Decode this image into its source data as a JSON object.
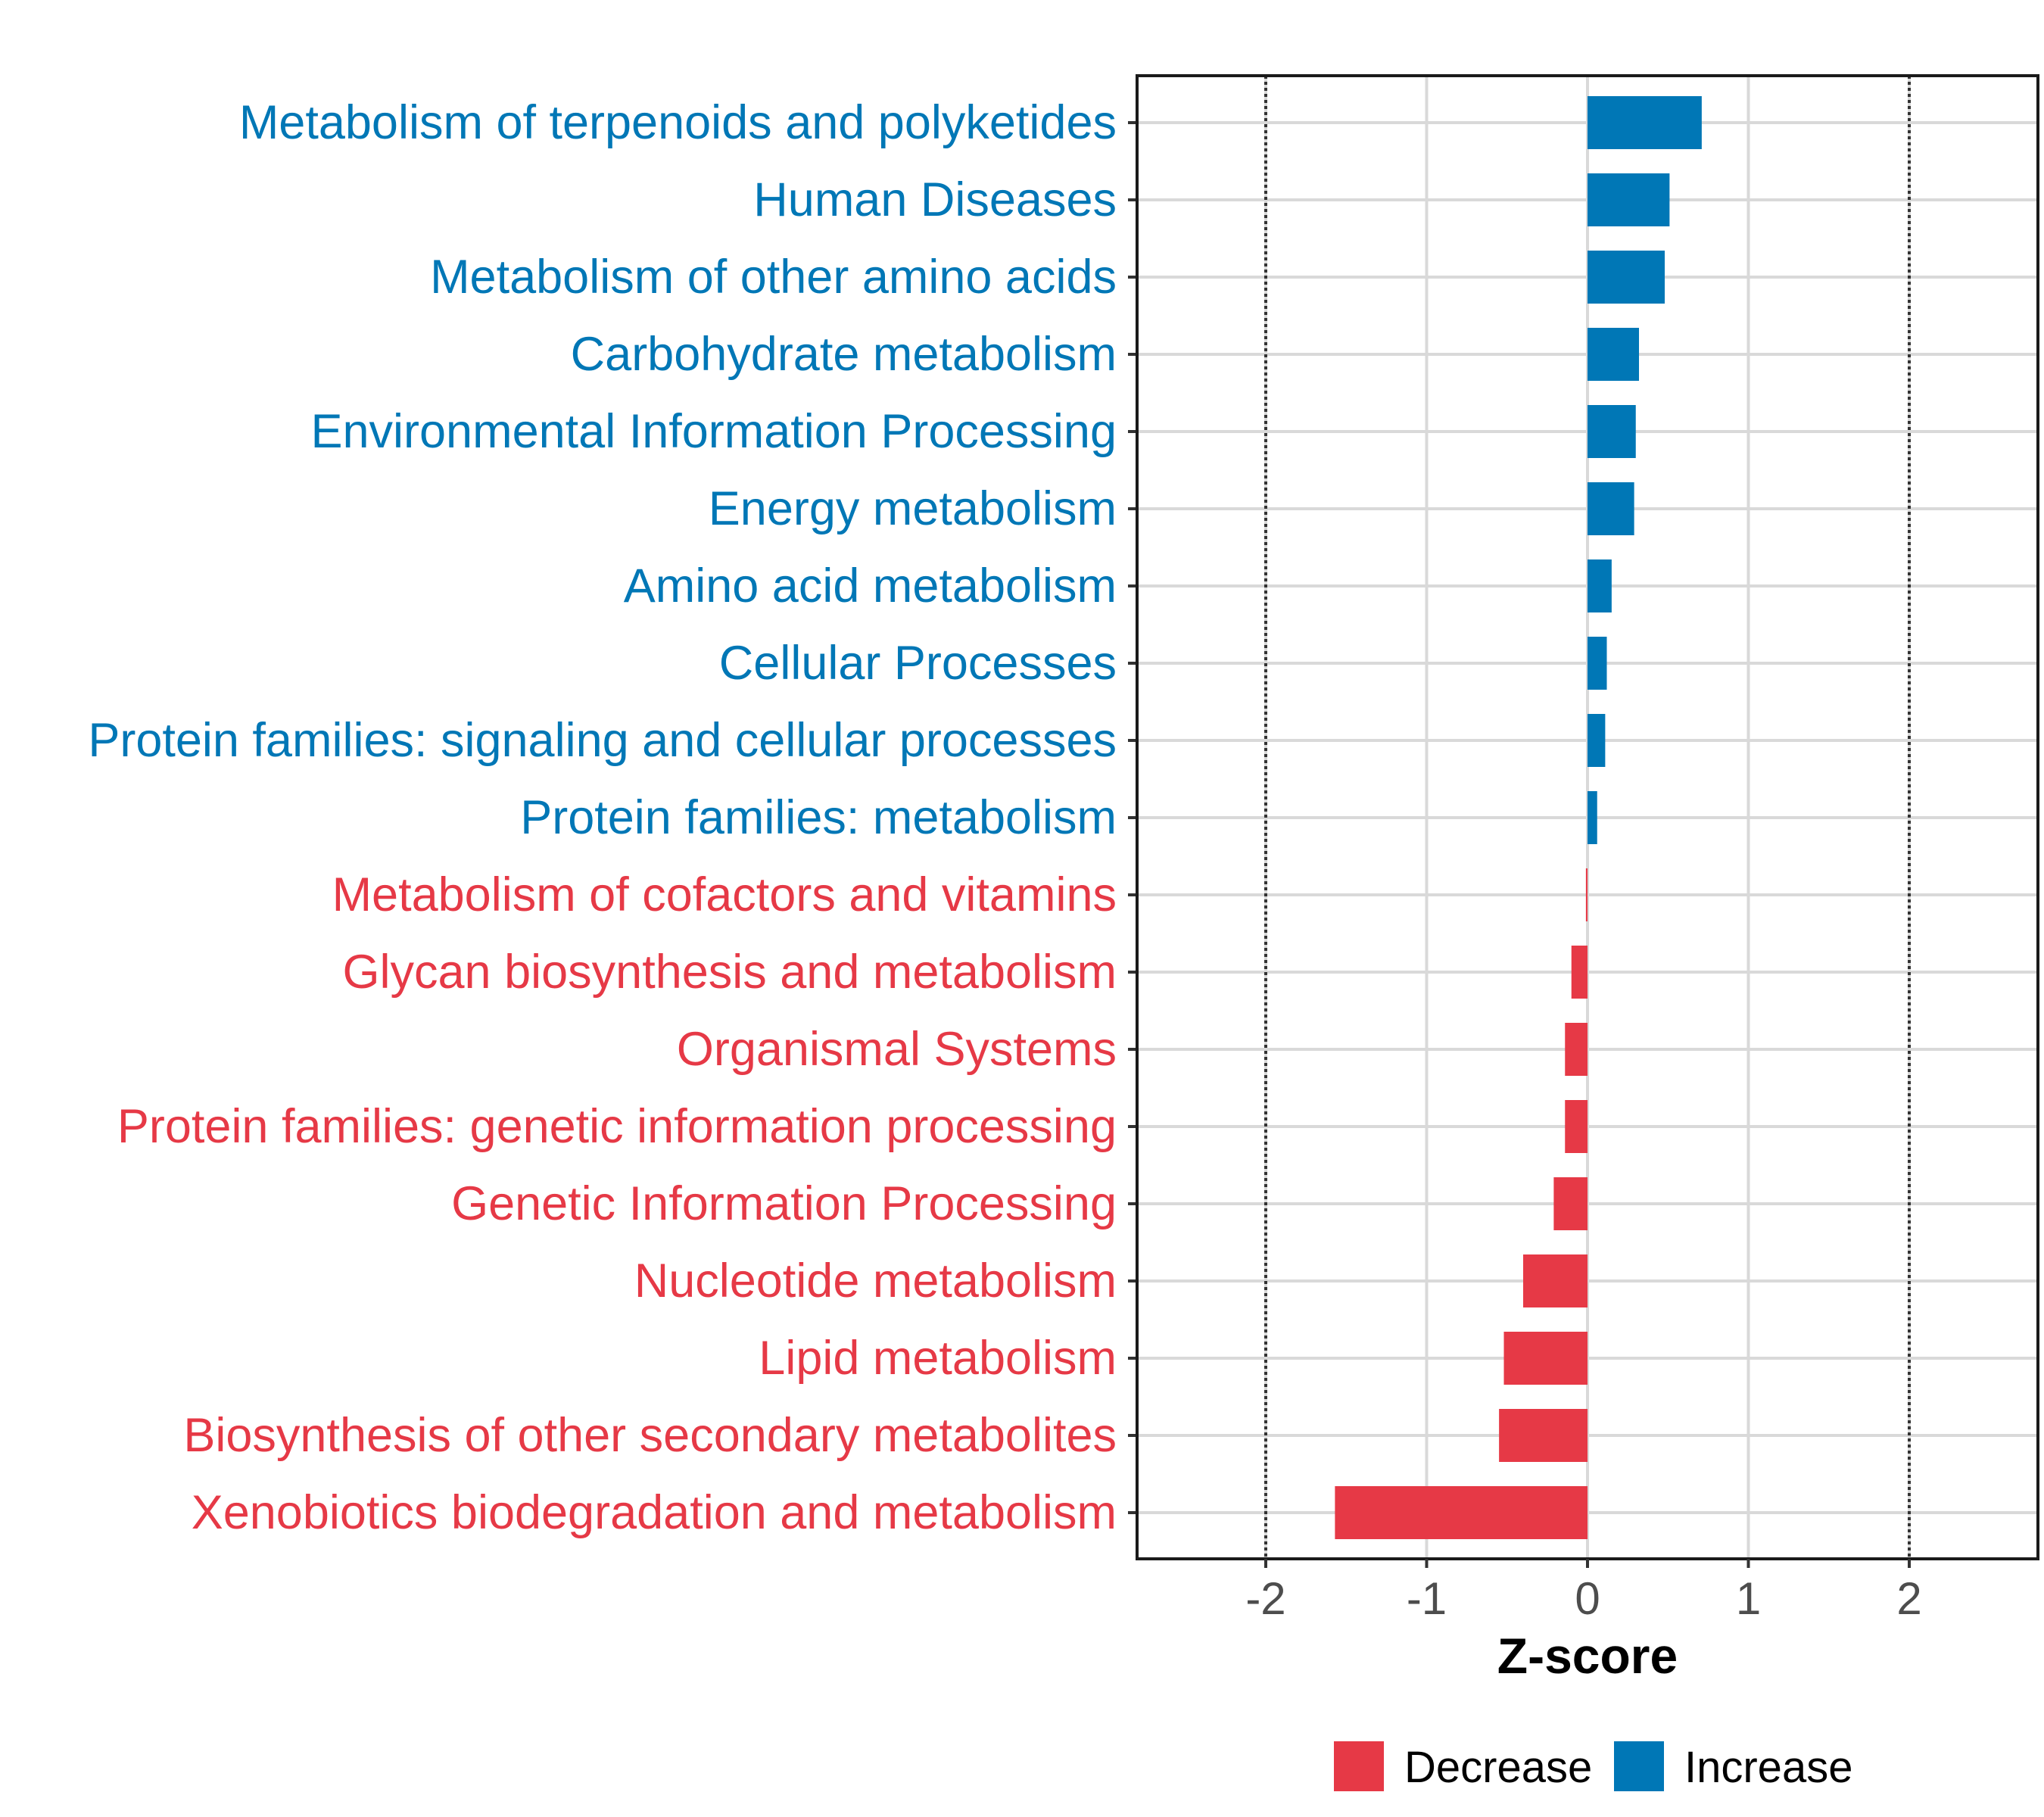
{
  "chart_data": {
    "type": "bar",
    "orientation": "horizontal",
    "xlabel": "Z-score",
    "xlim": [
      -2.8,
      2.8
    ],
    "xticks": [
      -2,
      -1,
      0,
      1,
      2
    ],
    "xtick_labels": [
      "-2",
      "-1",
      "0",
      "1",
      "2"
    ],
    "reference_lines": [
      -2,
      2
    ],
    "grid": true,
    "colors": {
      "Decrease": "#e63946",
      "Increase": "#0077b6"
    },
    "categories": [
      "Metabolism of terpenoids and polyketides",
      "Human Diseases",
      "Metabolism of other amino acids",
      "Carbohydrate metabolism",
      "Environmental Information Processing",
      "Energy metabolism",
      "Amino acid metabolism",
      "Cellular Processes",
      "Protein families: signaling and cellular processes",
      "Protein families: metabolism",
      "Metabolism of cofactors and vitamins",
      "Glycan biosynthesis and metabolism",
      "Organismal Systems",
      "Protein families: genetic information processing",
      "Genetic Information Processing",
      "Nucleotide metabolism",
      "Lipid metabolism",
      "Biosynthesis of other secondary metabolites",
      "Xenobiotics biodegradation and metabolism"
    ],
    "values": [
      0.71,
      0.51,
      0.48,
      0.32,
      0.3,
      0.29,
      0.15,
      0.12,
      0.11,
      0.06,
      -0.01,
      -0.1,
      -0.14,
      -0.14,
      -0.21,
      -0.4,
      -0.52,
      -0.55,
      -1.57
    ],
    "groups": [
      "Increase",
      "Increase",
      "Increase",
      "Increase",
      "Increase",
      "Increase",
      "Increase",
      "Increase",
      "Increase",
      "Increase",
      "Decrease",
      "Decrease",
      "Decrease",
      "Decrease",
      "Decrease",
      "Decrease",
      "Decrease",
      "Decrease",
      "Decrease"
    ],
    "legend": {
      "position": "bottom",
      "entries": [
        {
          "label": "Decrease",
          "color": "#e63946"
        },
        {
          "label": "Increase",
          "color": "#0077b6"
        }
      ]
    }
  }
}
